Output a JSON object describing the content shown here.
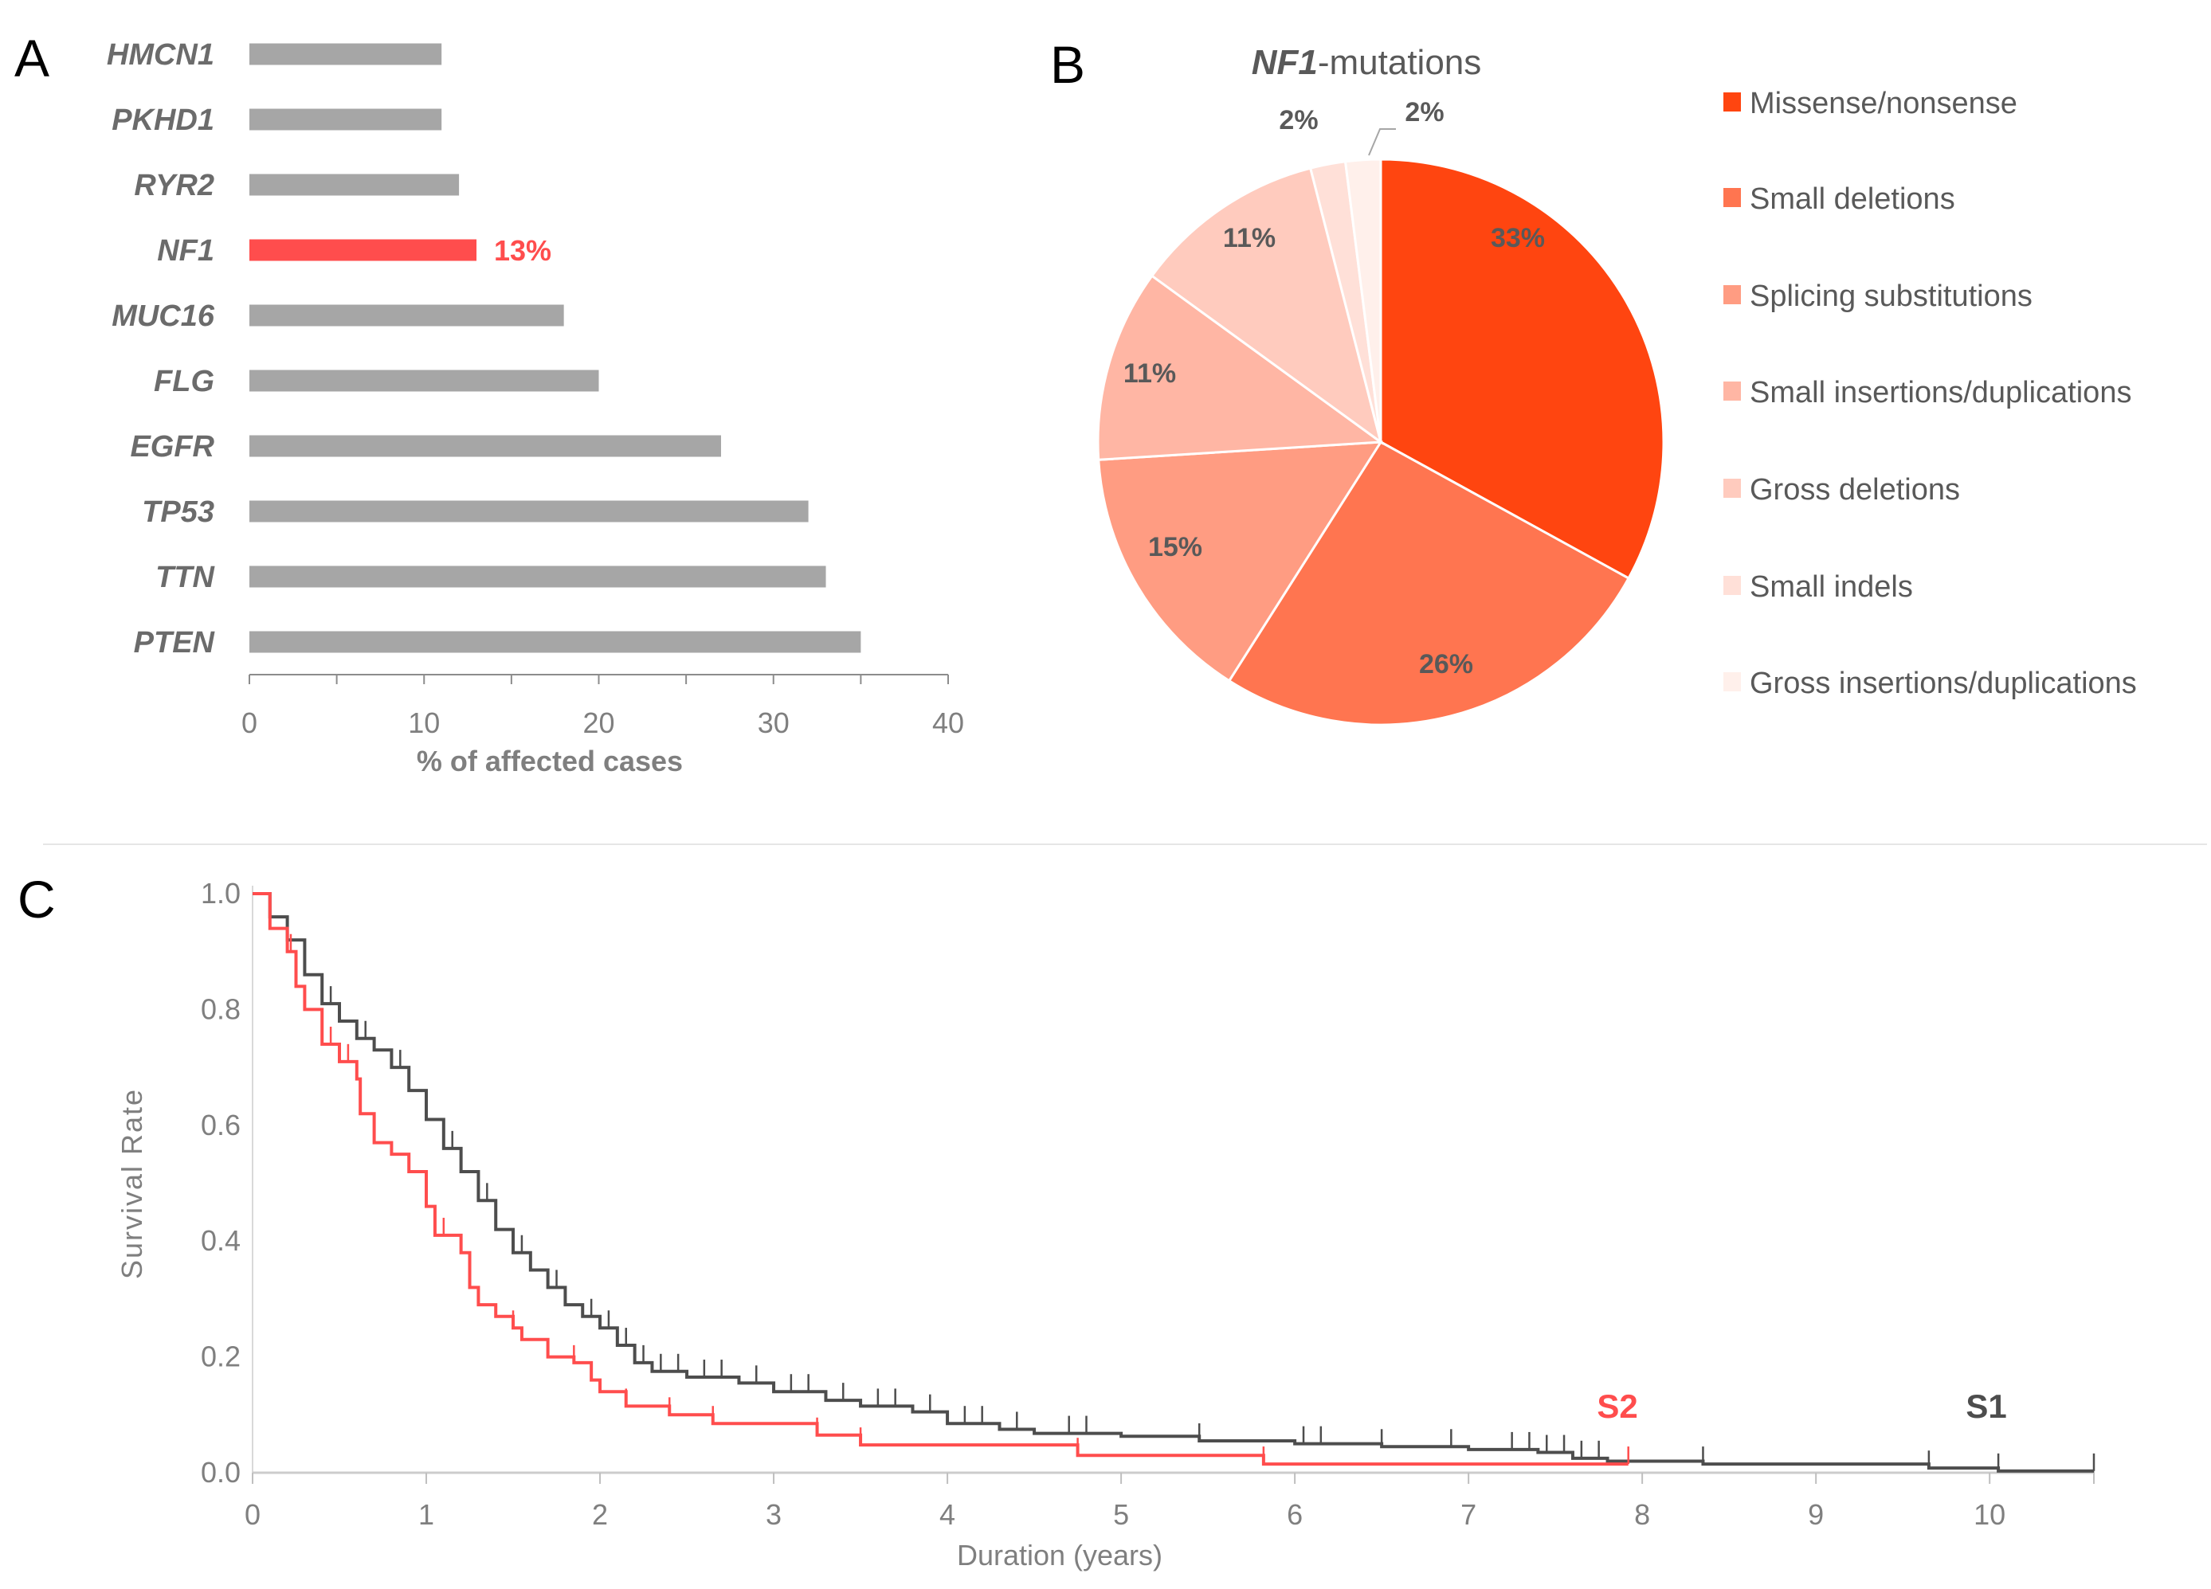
{
  "panels": {
    "a": "A",
    "b": "B",
    "c": "C"
  },
  "chart_data": [
    {
      "type": "bar",
      "orientation": "horizontal",
      "categories": [
        "HMCN1",
        "PKHD1",
        "RYR2",
        "NF1",
        "MUC16",
        "FLG",
        "EGFR",
        "TP53",
        "TTN",
        "PTEN"
      ],
      "values": [
        11,
        11,
        12,
        13,
        18,
        20,
        27,
        32,
        33,
        35
      ],
      "highlight": {
        "category": "NF1",
        "label": "13%",
        "color": "#ff4d4d"
      },
      "bar_color": "#a6a6a6",
      "xlabel": "% of affected cases",
      "xlim": [
        0,
        40
      ],
      "xticks": [
        0,
        10,
        20,
        30,
        40
      ]
    },
    {
      "type": "pie",
      "title_italic": "NF1",
      "title_rest": "-mutations",
      "labels": [
        "Missense/nonsense",
        "Small deletions",
        "Splicing substitutions",
        "Small insertions/duplications",
        "Gross deletions",
        "Small indels",
        "Gross insertions/duplications"
      ],
      "values": [
        33,
        26,
        15,
        11,
        11,
        2,
        2
      ],
      "value_labels": [
        "33%",
        "26%",
        "15%",
        "11%",
        "11%",
        "2%",
        "2%"
      ],
      "colors": [
        "#ff4510",
        "#ff7550",
        "#ff9c82",
        "#ffb6a4",
        "#ffcbbe",
        "#ffe0d8",
        "#fff0eb"
      ],
      "legend_position": "right"
    },
    {
      "type": "line",
      "subtype": "kaplan-meier",
      "xlabel": "Duration (years)",
      "ylabel": "Survival Rate",
      "xlim": [
        0,
        10.6
      ],
      "ylim": [
        0,
        1.0
      ],
      "xticks": [
        0,
        1,
        2,
        3,
        4,
        5,
        6,
        7,
        8,
        9,
        10
      ],
      "yticks": [
        "0.0",
        "0.2",
        "0.4",
        "0.6",
        "0.8",
        "1.0"
      ],
      "series": [
        {
          "name": "S1",
          "color": "#4d4d4d",
          "x": [
            0,
            0.1,
            0.2,
            0.3,
            0.4,
            0.5,
            0.6,
            0.7,
            0.8,
            0.9,
            1.0,
            1.1,
            1.2,
            1.3,
            1.4,
            1.5,
            1.6,
            1.7,
            1.8,
            1.9,
            2.0,
            2.1,
            2.2,
            2.3,
            2.5,
            2.8,
            3.0,
            3.3,
            3.5,
            3.8,
            4.0,
            4.3,
            4.5,
            5.0,
            5.45,
            6.0,
            6.5,
            7.0,
            7.4,
            7.6,
            7.8,
            8.35,
            9.65,
            10.05,
            10.6
          ],
          "y": [
            1,
            0.96,
            0.92,
            0.86,
            0.81,
            0.78,
            0.75,
            0.73,
            0.7,
            0.66,
            0.61,
            0.56,
            0.52,
            0.47,
            0.42,
            0.38,
            0.35,
            0.32,
            0.29,
            0.27,
            0.25,
            0.22,
            0.19,
            0.175,
            0.165,
            0.155,
            0.14,
            0.125,
            0.115,
            0.105,
            0.085,
            0.075,
            0.068,
            0.063,
            0.055,
            0.05,
            0.045,
            0.04,
            0.035,
            0.025,
            0.02,
            0.015,
            0.008,
            0.003,
            0.003
          ],
          "censored": [
            0.45,
            0.65,
            0.85,
            1.15,
            1.35,
            1.55,
            1.75,
            1.95,
            2.05,
            2.15,
            2.25,
            2.35,
            2.45,
            2.6,
            2.7,
            2.9,
            3.1,
            3.2,
            3.4,
            3.6,
            3.7,
            3.9,
            4.1,
            4.2,
            4.4,
            4.7,
            4.8,
            5.45,
            6.05,
            6.15,
            6.5,
            6.9,
            7.25,
            7.35,
            7.45,
            7.55,
            7.65,
            7.75,
            8.35,
            9.65,
            10.05,
            10.6
          ]
        },
        {
          "name": "S2",
          "color": "#ff4d4d",
          "x": [
            0,
            0.1,
            0.2,
            0.25,
            0.3,
            0.4,
            0.5,
            0.6,
            0.62,
            0.7,
            0.8,
            0.9,
            1.0,
            1.05,
            1.15,
            1.2,
            1.25,
            1.3,
            1.4,
            1.5,
            1.55,
            1.7,
            1.85,
            1.95,
            2.0,
            2.15,
            2.4,
            2.65,
            3.25,
            3.5,
            4.75,
            5.82,
            7.92
          ],
          "y": [
            1,
            0.94,
            0.9,
            0.84,
            0.8,
            0.74,
            0.71,
            0.68,
            0.62,
            0.57,
            0.55,
            0.52,
            0.46,
            0.41,
            0.41,
            0.38,
            0.32,
            0.29,
            0.27,
            0.25,
            0.23,
            0.2,
            0.19,
            0.16,
            0.14,
            0.115,
            0.1,
            0.085,
            0.065,
            0.048,
            0.03,
            0.015,
            0.015
          ],
          "censored": [
            0.22,
            0.45,
            0.55,
            0.9,
            1.1,
            1.3,
            1.5,
            1.7,
            1.85,
            2.15,
            2.4,
            2.65,
            3.25,
            3.5,
            4.75,
            5.82,
            7.92
          ]
        }
      ]
    }
  ]
}
